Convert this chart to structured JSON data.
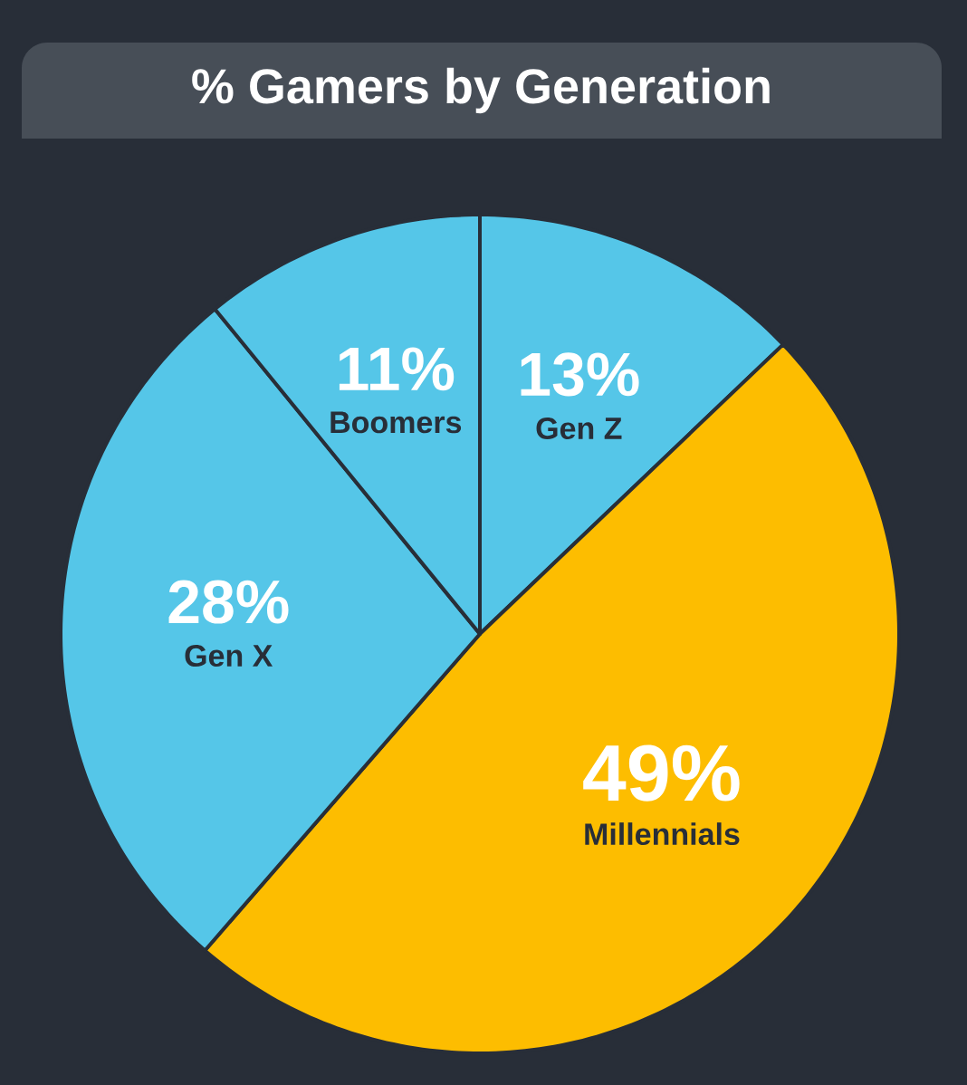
{
  "chart_data": {
    "type": "pie",
    "title": "% Gamers by Generation",
    "categories": [
      "Gen Z",
      "Millennials",
      "Gen X",
      "Boomers"
    ],
    "values": [
      13,
      49,
      28,
      11
    ],
    "value_labels": [
      "13%",
      "49%",
      "28%",
      "11%"
    ],
    "colors": [
      "#55c6e8",
      "#fdbd00",
      "#55c6e8",
      "#55c6e8"
    ]
  }
}
